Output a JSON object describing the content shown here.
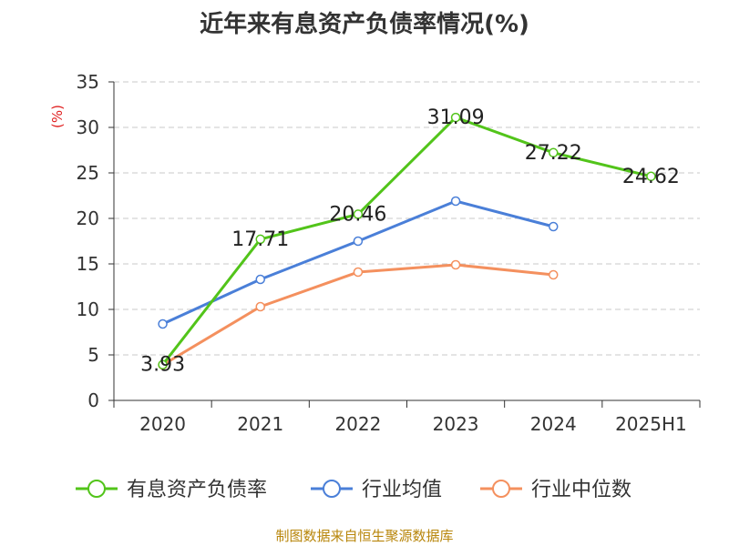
{
  "chart_data": {
    "type": "line",
    "title": "近年来有息资产负债率情况(%)",
    "ylabel": "(%)",
    "categories": [
      "2020",
      "2021",
      "2022",
      "2023",
      "2024",
      "2025H1"
    ],
    "ylim": [
      0,
      35
    ],
    "yticks": [
      0,
      5,
      10,
      15,
      20,
      25,
      30,
      35
    ],
    "grid": true,
    "legend_position": "bottom",
    "series": [
      {
        "name": "有息资产负债率",
        "color": "#52c41a",
        "values": [
          3.93,
          17.71,
          20.46,
          31.09,
          27.22,
          24.62
        ],
        "show_labels": true
      },
      {
        "name": "行业均值",
        "color": "#4a7fd8",
        "values": [
          8.4,
          13.3,
          17.5,
          21.9,
          19.1,
          null
        ],
        "show_labels": false
      },
      {
        "name": "行业中位数",
        "color": "#f4905e",
        "values": [
          3.9,
          10.3,
          14.1,
          14.9,
          13.8,
          null
        ],
        "show_labels": false
      }
    ]
  },
  "source": "制图数据来自恒生聚源数据库"
}
